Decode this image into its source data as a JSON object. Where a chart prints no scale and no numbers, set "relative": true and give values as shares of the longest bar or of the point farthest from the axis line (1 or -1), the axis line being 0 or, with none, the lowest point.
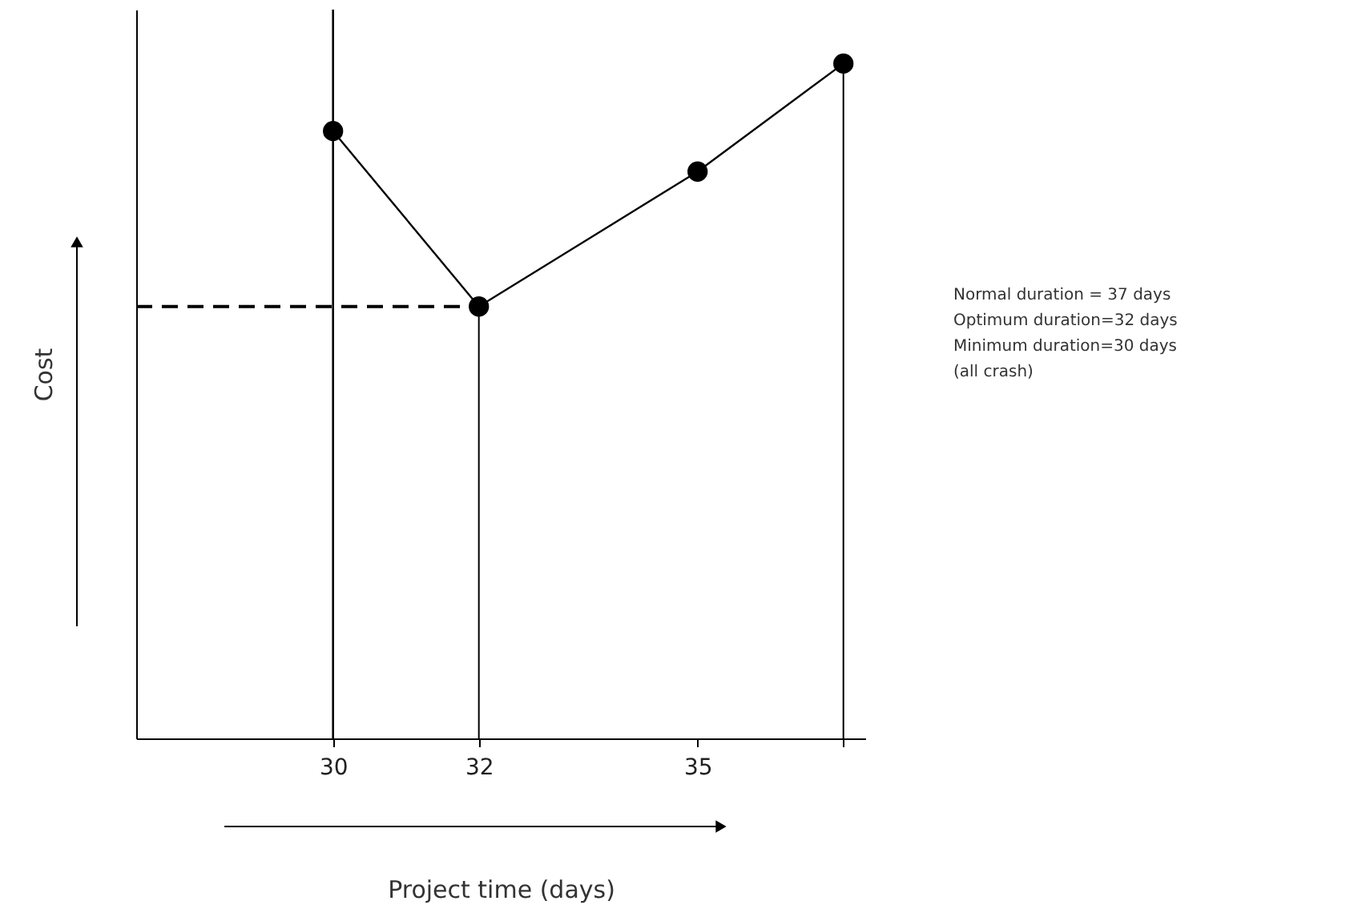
{
  "chart_data": {
    "type": "line",
    "relative": true,
    "xlabel": "Project time (days)",
    "ylabel": "Cost",
    "x": [
      30,
      32,
      35,
      37
    ],
    "xlim": [
      27.3,
      37.3
    ],
    "xticks": [
      30,
      32,
      35,
      {
        "value": 37,
        "label": null
      }
    ],
    "series": [
      {
        "color": "#000000",
        "values": [
          0.9,
          0.64,
          0.84,
          1
        ]
      }
    ],
    "marker": "circle",
    "grid": false,
    "legend": false,
    "ref_lines": [
      {
        "axis": "x",
        "value": 30,
        "color": "#000000"
      },
      {
        "axis": "x",
        "value": 32,
        "color": "#000000"
      },
      {
        "axis": "x",
        "value": 37,
        "color": "#000000"
      },
      {
        "axis": "y",
        "value": 0.64,
        "color": "#000000",
        "line_style": "dashed"
      }
    ],
    "annotations": [
      "Normal duration = 37 days",
      "Optimum duration=32 days",
      "Minimum duration=30 days",
      "(all crash)"
    ]
  }
}
